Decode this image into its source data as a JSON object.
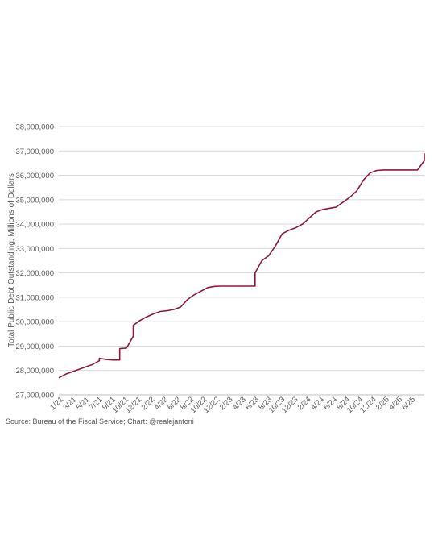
{
  "chart_data": {
    "type": "line",
    "ylabel": "Total Public Debt Outstanding, Millions of Dollars",
    "ylim": [
      27000000,
      38000000
    ],
    "yticks": [
      27000000,
      28000000,
      29000000,
      30000000,
      31000000,
      32000000,
      33000000,
      34000000,
      35000000,
      36000000,
      37000000,
      38000000
    ],
    "ytick_labels": [
      "27,000,000",
      "28,000,000",
      "29,000,000",
      "30,000,000",
      "31,000,000",
      "32,000,000",
      "33,000,000",
      "34,000,000",
      "35,000,000",
      "36,000,000",
      "37,000,000",
      "38,000,000"
    ],
    "x_tick_labels": [
      "1/21",
      "3/21",
      "5/21",
      "7/21",
      "9/21",
      "10/21",
      "12/21",
      "2/22",
      "4/22",
      "6/22",
      "8/22",
      "10/22",
      "12/22",
      "2/23",
      "4/23",
      "6/23",
      "8/23",
      "10/23",
      "12/23",
      "2/24",
      "4/24",
      "6/24",
      "8/24",
      "10/24",
      "12/24",
      "2/25",
      "4/25",
      "6/25"
    ],
    "x_range": [
      "2021-01",
      "2025-07"
    ],
    "grid": "horizontal",
    "line_color": "#8b1a3a",
    "series": [
      {
        "x": [
          "2021-01",
          "2021-02",
          "2021-03",
          "2021-04",
          "2021-05",
          "2021-06",
          "2021-07",
          "2021-07",
          "2021-08",
          "2021-09",
          "2021-10",
          "2021-10",
          "2021-11",
          "2021-11",
          "2021-12",
          "2021-12",
          "2022-01",
          "2022-02",
          "2022-03",
          "2022-04",
          "2022-05",
          "2022-06",
          "2022-07",
          "2022-08",
          "2022-09",
          "2022-10",
          "2022-11",
          "2022-12",
          "2023-01",
          "2023-02",
          "2023-03",
          "2023-04",
          "2023-05",
          "2023-06",
          "2023-06",
          "2023-07",
          "2023-08",
          "2023-09",
          "2023-10",
          "2023-11",
          "2023-12",
          "2024-01",
          "2024-02",
          "2024-03",
          "2024-04",
          "2024-05",
          "2024-06",
          "2024-07",
          "2024-08",
          "2024-09",
          "2024-10",
          "2024-11",
          "2024-12",
          "2025-01",
          "2025-02",
          "2025-03",
          "2025-04",
          "2025-05",
          "2025-06",
          "2025-07",
          "2025-07"
        ],
        "values": [
          27700000,
          27850000,
          27950000,
          28050000,
          28150000,
          28250000,
          28400000,
          28500000,
          28450000,
          28430000,
          28430000,
          28900000,
          28920000,
          28920000,
          29400000,
          29850000,
          30050000,
          30200000,
          30320000,
          30420000,
          30450000,
          30500000,
          30600000,
          30900000,
          31100000,
          31250000,
          31400000,
          31450000,
          31460000,
          31460000,
          31460000,
          31460000,
          31460000,
          31460000,
          32000000,
          32500000,
          32700000,
          33100000,
          33600000,
          33750000,
          33850000,
          34000000,
          34250000,
          34500000,
          34600000,
          34650000,
          34700000,
          34900000,
          35100000,
          35350000,
          35800000,
          36100000,
          36200000,
          36220000,
          36220000,
          36220000,
          36220000,
          36220000,
          36220000,
          36600000,
          36900000
        ]
      }
    ]
  },
  "source": "Source: Bureau of the Fiscal Service; Chart: @realejantoni"
}
